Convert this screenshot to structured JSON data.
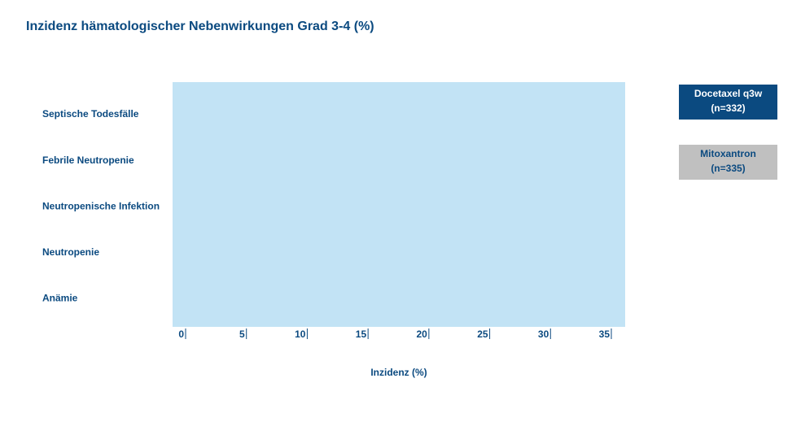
{
  "chart_data": {
    "type": "bar",
    "orientation": "horizontal",
    "title": "Inzidenz hämatologischer Nebenwirkungen Grad 3-4 (%)",
    "categories": [
      "Septische Todesfälle",
      "Febrile Neutropenie",
      "Neutropenische Infektion",
      "Neutropenie",
      "Anämie"
    ],
    "series": [
      {
        "name": "Docetaxel q3w",
        "subtitle": "(n=332)",
        "color": "#0b4a80"
      },
      {
        "name": "Mitoxantron",
        "subtitle": "(n=335)",
        "color": "#c0c0c0"
      }
    ],
    "plot_background": "#c2e3f5",
    "xlim": [
      0,
      35
    ],
    "xticks": [
      0,
      5,
      10,
      15,
      20,
      25,
      30,
      35
    ],
    "xlabel": "Inzidenz (%)"
  }
}
